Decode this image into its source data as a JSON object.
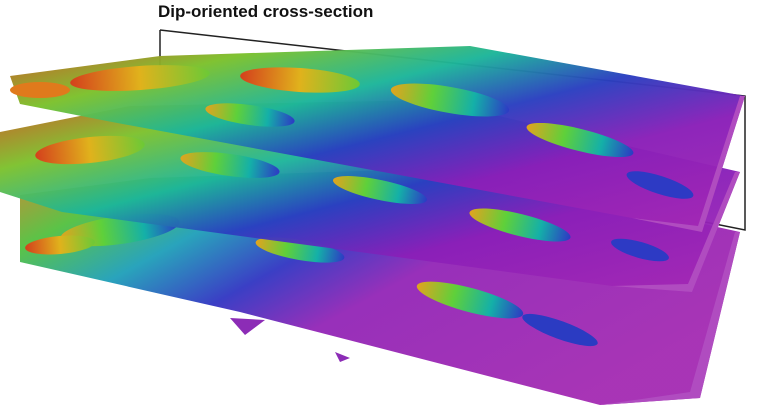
{
  "annotation": {
    "label": "Dip-oriented cross-section"
  }
}
